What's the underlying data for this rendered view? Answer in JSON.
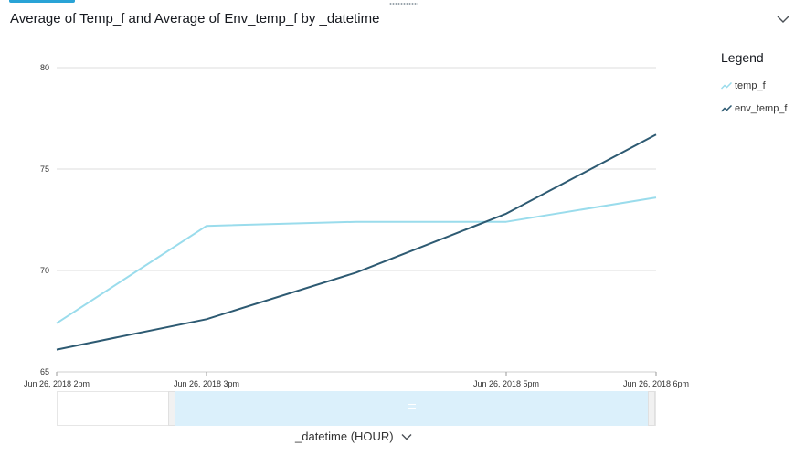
{
  "title": "Average of Temp_f and Average of Env_temp_f by _datetime",
  "legend": {
    "title": "Legend",
    "items": [
      "temp_f",
      "env_temp_f"
    ]
  },
  "x_field_selector": "_datetime (HOUR)",
  "colors": {
    "temp_f": "#9adcec",
    "env_temp_f": "#2d5a72",
    "grid": "#dddddd",
    "brush": "#dbf0fb"
  },
  "icons": {
    "collapse": "chevron-down-icon",
    "x_field_menu": "chevron-down-icon",
    "legend_series": "line-series-icon"
  },
  "chart_data": {
    "type": "line",
    "title": "Average of Temp_f and Average of Env_temp_f by _datetime",
    "xlabel": "_datetime (HOUR)",
    "ylabel": "",
    "x": [
      "2018-06-26 14:00",
      "2018-06-26 15:00",
      "2018-06-26 16:00",
      "2018-06-26 17:00",
      "2018-06-26 18:00"
    ],
    "xtick_labels": [
      "Jun 26, 2018 2pm",
      "Jun 26, 2018 3pm",
      "",
      "Jun 26, 2018 5pm",
      "Jun 26, 2018 6pm"
    ],
    "series": [
      {
        "name": "temp_f",
        "values": [
          67.4,
          72.2,
          72.4,
          72.4,
          73.6
        ]
      },
      {
        "name": "env_temp_f",
        "values": [
          66.1,
          67.6,
          69.9,
          72.8,
          76.7
        ]
      }
    ],
    "ylim": [
      65,
      80
    ],
    "yticks": [
      65,
      70,
      75,
      80
    ],
    "grid": true,
    "legend_position": "right"
  }
}
